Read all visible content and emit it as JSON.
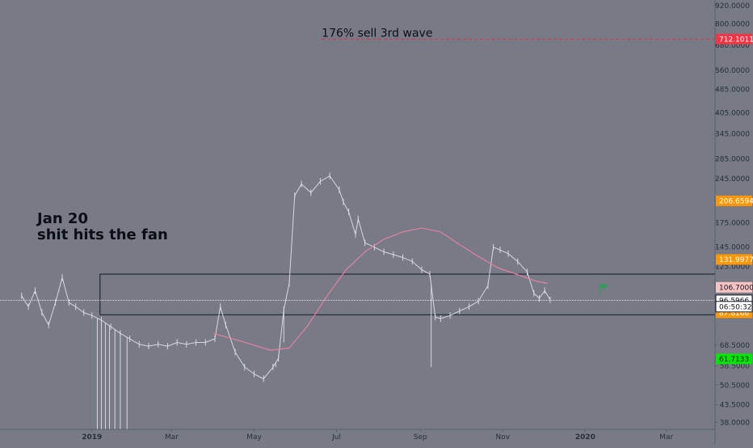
{
  "chart_data": {
    "type": "candlestick",
    "scale": "log",
    "grid": false,
    "y_range": [
      36,
      960
    ],
    "x_range": [
      "2018-10-25",
      "2020-04-06"
    ],
    "y_ticks": [
      {
        "v": 920,
        "label": "920.0000"
      },
      {
        "v": 800,
        "label": "800.0000"
      },
      {
        "v": 680,
        "label": "680.0000"
      },
      {
        "v": 560,
        "label": "560.0000"
      },
      {
        "v": 485,
        "label": "485.0000"
      },
      {
        "v": 405,
        "label": "405.0000"
      },
      {
        "v": 345,
        "label": "345.0000"
      },
      {
        "v": 285,
        "label": "285.0000"
      },
      {
        "v": 245,
        "label": "245.0000"
      },
      {
        "v": 175,
        "label": "175.0000"
      },
      {
        "v": 145,
        "label": "145.0000"
      },
      {
        "v": 125,
        "label": "125.0000"
      },
      {
        "v": 68.5,
        "label": "68.5000"
      },
      {
        "v": 58.5,
        "label": "58.5000"
      },
      {
        "v": 50.5,
        "label": "50.5000"
      },
      {
        "v": 43.5,
        "label": "43.5000"
      },
      {
        "v": 38,
        "label": "38.0000"
      }
    ],
    "x_ticks": [
      {
        "date": "2019-01-01",
        "label": "2019",
        "bold": true
      },
      {
        "date": "2019-03-01",
        "label": "Mar",
        "bold": false
      },
      {
        "date": "2019-05-01",
        "label": "May",
        "bold": false
      },
      {
        "date": "2019-07-01",
        "label": "Jul",
        "bold": false
      },
      {
        "date": "2019-09-01",
        "label": "Sep",
        "bold": false
      },
      {
        "date": "2019-11-01",
        "label": "Nov",
        "bold": false
      },
      {
        "date": "2020-01-01",
        "label": "2020",
        "bold": true
      },
      {
        "date": "2020-03-01",
        "label": "Mar",
        "bold": false
      }
    ],
    "price_badges": [
      {
        "v": 712.1011,
        "label": "712.1011",
        "bg": "#f23645",
        "fg": "#ffffff"
      },
      {
        "v": 206.6594,
        "label": "206.6594",
        "bg": "#ff9800",
        "fg": "#ffffff"
      },
      {
        "v": 131.9977,
        "label": "131.9977",
        "bg": "#ff9800",
        "fg": "#ffffff"
      },
      {
        "v": 106.7,
        "label": "106.7000",
        "bg": "#f8c3c3",
        "fg": "#131722"
      },
      {
        "v": 96.5966,
        "label": "96.5966",
        "bg": "#ffffff",
        "fg": "#131722",
        "border": "#131722"
      },
      {
        "v": 87.8166,
        "label": "87.8166",
        "bg": "#ff9800",
        "fg": "#ffffff"
      },
      {
        "v": 61.7133,
        "label": "61.7133",
        "bg": "#00e600",
        "fg": "#131722"
      }
    ],
    "countdown": {
      "label": "06:50:32",
      "v": 92.0
    },
    "price_line": {
      "v": 96.5966,
      "color": "#e8e8e8"
    },
    "target_line": {
      "v": 712.1011,
      "start": "2019-06-20",
      "color": "#e03040",
      "label": "176% sell 3rd wave"
    },
    "zone_box": {
      "start": "2019-01-07",
      "top": 118,
      "bottom": 86.5,
      "color": "#131722"
    },
    "flag": {
      "date": "2020-01-12",
      "v": 108,
      "color": "#2e9e5a"
    },
    "annotation": {
      "line1": "Jan 20",
      "line2": "shit hits the fan",
      "color": "#0c0e15"
    },
    "series": [
      {
        "kind": "price",
        "color": "#d6d8de",
        "points": [
          [
            "2018-11-10",
            100
          ],
          [
            "2018-11-15",
            92
          ],
          [
            "2018-11-20",
            104
          ],
          [
            "2018-11-25",
            88
          ],
          [
            "2018-11-30",
            80
          ],
          [
            "2018-12-05",
            95
          ],
          [
            "2018-12-10",
            115
          ],
          [
            "2018-12-15",
            95
          ],
          [
            "2018-12-20",
            92
          ],
          [
            "2018-12-26",
            88
          ],
          [
            "2019-01-01",
            86
          ],
          [
            "2019-01-08",
            83
          ],
          [
            "2019-01-15",
            79
          ],
          [
            "2019-01-22",
            75
          ],
          [
            "2019-01-29",
            72
          ],
          [
            "2019-02-05",
            69
          ],
          [
            "2019-02-12",
            68
          ],
          [
            "2019-02-19",
            69
          ],
          [
            "2019-02-26",
            68
          ],
          [
            "2019-03-05",
            70
          ],
          [
            "2019-03-12",
            69
          ],
          [
            "2019-03-19",
            70
          ],
          [
            "2019-03-26",
            70
          ],
          [
            "2019-04-02",
            72
          ],
          [
            "2019-04-06",
            92
          ],
          [
            "2019-04-10",
            80
          ],
          [
            "2019-04-17",
            65
          ],
          [
            "2019-04-24",
            58
          ],
          [
            "2019-05-01",
            55
          ],
          [
            "2019-05-08",
            53
          ],
          [
            "2019-05-15",
            58
          ],
          [
            "2019-05-19",
            62
          ],
          [
            "2019-05-23",
            90
          ],
          [
            "2019-05-27",
            110
          ],
          [
            "2019-05-31",
            215
          ],
          [
            "2019-06-05",
            235
          ],
          [
            "2019-06-12",
            220
          ],
          [
            "2019-06-19",
            240
          ],
          [
            "2019-06-26",
            250
          ],
          [
            "2019-07-03",
            225
          ],
          [
            "2019-07-06",
            205
          ],
          [
            "2019-07-10",
            190
          ],
          [
            "2019-07-15",
            160
          ],
          [
            "2019-07-17",
            180
          ],
          [
            "2019-07-22",
            150
          ],
          [
            "2019-07-29",
            145
          ],
          [
            "2019-08-05",
            140
          ],
          [
            "2019-08-12",
            137
          ],
          [
            "2019-08-19",
            134
          ],
          [
            "2019-08-26",
            130
          ],
          [
            "2019-09-02",
            122
          ],
          [
            "2019-09-08",
            118
          ],
          [
            "2019-09-12",
            85
          ],
          [
            "2019-09-16",
            84
          ],
          [
            "2019-09-23",
            86
          ],
          [
            "2019-09-30",
            89
          ],
          [
            "2019-10-07",
            92
          ],
          [
            "2019-10-14",
            96
          ],
          [
            "2019-10-21",
            108
          ],
          [
            "2019-10-25",
            145
          ],
          [
            "2019-10-30",
            142
          ],
          [
            "2019-11-05",
            138
          ],
          [
            "2019-11-12",
            130
          ],
          [
            "2019-11-19",
            120
          ],
          [
            "2019-11-24",
            102
          ],
          [
            "2019-11-28",
            98
          ],
          [
            "2019-12-02",
            104
          ],
          [
            "2019-12-06",
            97
          ]
        ]
      },
      {
        "kind": "moving_average",
        "color": "#e57fa0",
        "points": [
          [
            "2019-04-01",
            75
          ],
          [
            "2019-04-15",
            72
          ],
          [
            "2019-04-29",
            69
          ],
          [
            "2019-05-13",
            66
          ],
          [
            "2019-05-27",
            67
          ],
          [
            "2019-06-10",
            80
          ],
          [
            "2019-06-24",
            100
          ],
          [
            "2019-07-08",
            122
          ],
          [
            "2019-07-22",
            140
          ],
          [
            "2019-08-05",
            154
          ],
          [
            "2019-08-19",
            163
          ],
          [
            "2019-09-02",
            168
          ],
          [
            "2019-09-16",
            163
          ],
          [
            "2019-09-30",
            148
          ],
          [
            "2019-10-14",
            135
          ],
          [
            "2019-10-28",
            124
          ],
          [
            "2019-11-11",
            118
          ],
          [
            "2019-11-25",
            112
          ],
          [
            "2019-12-04",
            110
          ]
        ]
      }
    ],
    "spikes": [
      {
        "date": "2019-01-05",
        "low": 36
      },
      {
        "date": "2019-01-08",
        "low": 36
      },
      {
        "date": "2019-01-11",
        "low": 36
      },
      {
        "date": "2019-01-14",
        "low": 36
      },
      {
        "date": "2019-01-18",
        "low": 36
      },
      {
        "date": "2019-01-22",
        "low": 36
      },
      {
        "date": "2019-01-27",
        "low": 36
      },
      {
        "date": "2019-05-17",
        "low": 58
      },
      {
        "date": "2019-05-23",
        "low": 70
      },
      {
        "date": "2019-09-09",
        "low": 58
      }
    ]
  }
}
